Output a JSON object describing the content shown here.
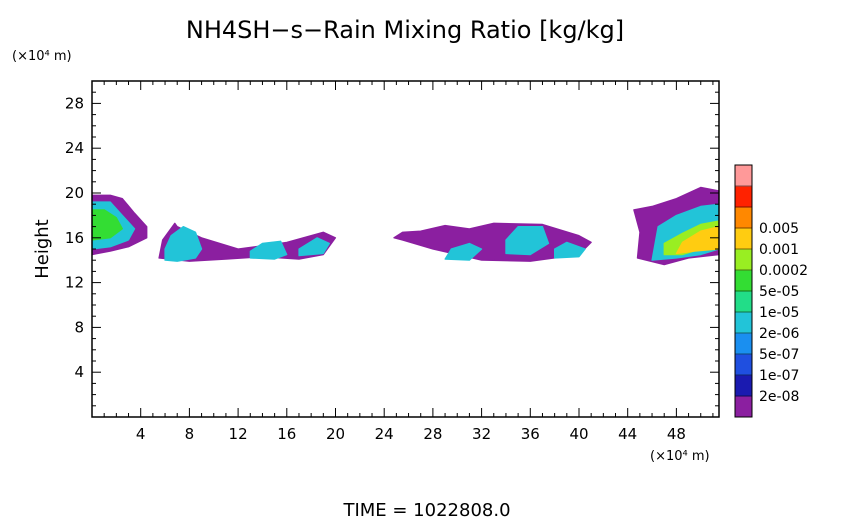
{
  "chart_data": {
    "type": "heatmap",
    "title": "NH4SH−s−Rain Mixing Ratio [kg/kg]",
    "ylabel": "Height",
    "y_unit": "(×10⁴ m)",
    "x_unit": "(×10⁴ m)",
    "footer": "TIME  =  1022808.0",
    "xlim": [
      0,
      51.5
    ],
    "ylim": [
      0,
      30
    ],
    "x_ticks": [
      4,
      8,
      12,
      16,
      20,
      24,
      28,
      32,
      36,
      40,
      44,
      48
    ],
    "y_ticks": [
      4,
      8,
      12,
      16,
      20,
      24,
      28
    ],
    "colorbar": {
      "colors": [
        "#8b1fa0",
        "#1a1ab0",
        "#1f4fe0",
        "#1a8ff0",
        "#22c4d8",
        "#22dd88",
        "#33dd33",
        "#99ee22",
        "#ffcc11",
        "#ff8800",
        "#ff2200",
        "#ff9999"
      ],
      "labels": [
        "2e-08",
        "1e-07",
        "5e-07",
        "2e-06",
        "1e-05",
        "5e-05",
        "0.0002",
        "0.001",
        "0.005"
      ]
    },
    "blobs": [
      {
        "x": [
          0,
          1.5,
          3,
          4.5,
          4.5,
          3.5,
          2.5,
          1.5,
          0
        ],
        "y": [
          14.5,
          14.8,
          15.2,
          16,
          17,
          18.2,
          19.5,
          19.8,
          19.8
        ],
        "level": 0
      },
      {
        "x": [
          0,
          1.5,
          3,
          3.5,
          2.5,
          1.5,
          0
        ],
        "y": [
          15,
          15.2,
          15.8,
          16.8,
          18,
          19.2,
          19.2
        ],
        "level": 4
      },
      {
        "x": [
          0,
          1.5,
          2.5,
          2,
          1,
          0
        ],
        "y": [
          15.8,
          16,
          16.8,
          17.8,
          18.5,
          18.5
        ],
        "level": 6
      },
      {
        "x": [
          5.5,
          8,
          11,
          14,
          17,
          19,
          20,
          19,
          16,
          12,
          9,
          7,
          6.8,
          5.8
        ],
        "y": [
          14.2,
          13.9,
          14.1,
          14.3,
          14.1,
          14.5,
          16,
          16.5,
          15.6,
          15,
          16,
          17,
          17.3,
          15.8
        ],
        "level": 0
      },
      {
        "x": [
          6,
          7,
          8.5,
          9,
          8.5,
          7.5,
          6.5,
          6
        ],
        "y": [
          14,
          13.9,
          14.2,
          15,
          16.5,
          17,
          16.2,
          15
        ],
        "level": 4
      },
      {
        "x": [
          13,
          15,
          16,
          15.5,
          14,
          13
        ],
        "y": [
          14.2,
          14.1,
          14.5,
          15.7,
          15.5,
          14.8
        ],
        "level": 4
      },
      {
        "x": [
          17,
          19,
          19.5,
          18.5,
          17
        ],
        "y": [
          14.4,
          14.6,
          15.5,
          16,
          15
        ],
        "level": 4
      },
      {
        "x": [
          25.5,
          28,
          32,
          36,
          40,
          41,
          40,
          37,
          33,
          31,
          29,
          27,
          25.5,
          24.8
        ],
        "y": [
          15.8,
          15,
          14,
          13.9,
          14.5,
          15.6,
          16.2,
          17.2,
          17.3,
          16.8,
          17.1,
          16.6,
          16.5,
          16
        ],
        "level": 0
      },
      {
        "x": [
          29,
          31,
          32,
          31,
          29.5
        ],
        "y": [
          14.1,
          14,
          15,
          15.5,
          15
        ],
        "level": 4
      },
      {
        "x": [
          34,
          36,
          37.5,
          37,
          35,
          34
        ],
        "y": [
          14.6,
          14.5,
          15.5,
          17,
          17,
          15.8
        ],
        "level": 4
      },
      {
        "x": [
          38,
          40,
          40.5,
          39,
          38
        ],
        "y": [
          14.2,
          14.3,
          15,
          15.6,
          15
        ],
        "level": 4
      },
      {
        "x": [
          44.8,
          47,
          49,
          51.5,
          51.5,
          50,
          48,
          46,
          44.5,
          45
        ],
        "y": [
          14.2,
          13.6,
          14.2,
          14.5,
          20.2,
          20.5,
          19.5,
          18.8,
          18.5,
          16.5
        ],
        "level": 0
      },
      {
        "x": [
          46,
          48,
          50,
          51.5,
          51.5,
          50,
          48,
          46.5
        ],
        "y": [
          14,
          14.2,
          14.5,
          15,
          19,
          18.8,
          18,
          17
        ],
        "level": 4
      },
      {
        "x": [
          47,
          48.5,
          50,
          51.5,
          51.5,
          50,
          48.5,
          47
        ],
        "y": [
          14.5,
          14.5,
          15,
          15.2,
          17.5,
          17.2,
          16.4,
          15.5
        ],
        "level": 7
      },
      {
        "x": [
          48,
          49.5,
          51.5,
          51.5,
          50,
          48.5
        ],
        "y": [
          14.6,
          14.8,
          15,
          17,
          16.6,
          15.6
        ],
        "level": 8
      }
    ]
  }
}
